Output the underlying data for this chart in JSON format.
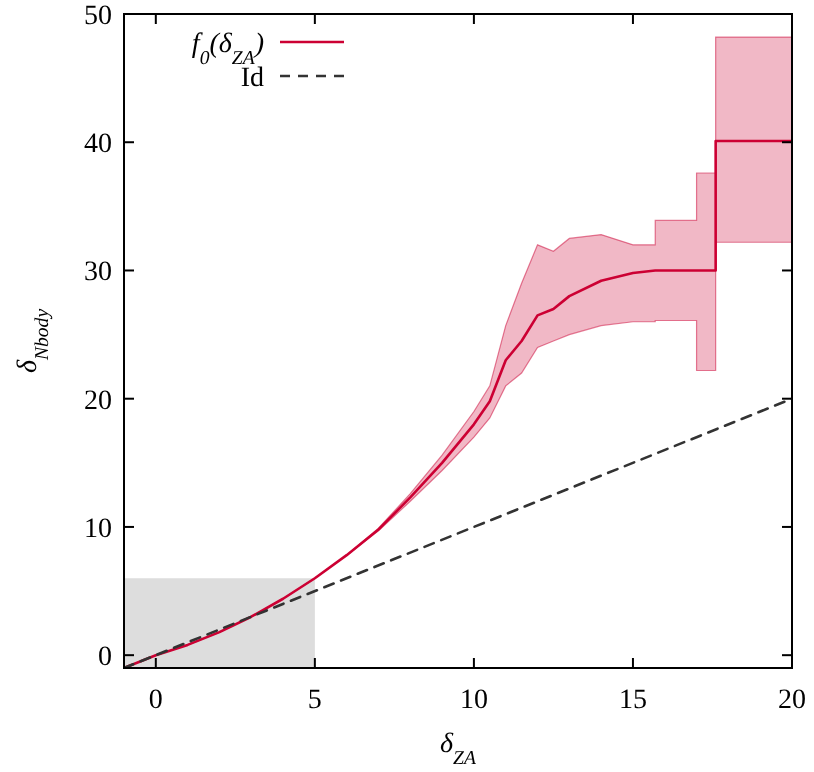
{
  "chart_data": {
    "type": "line",
    "xlabel": "δ$_{ZA}$",
    "ylabel": "δ$_{Nbody}$",
    "xlim": [
      -1,
      20
    ],
    "ylim": [
      -1,
      50
    ],
    "xticks": [
      0,
      5,
      10,
      15,
      20
    ],
    "yticks": [
      0,
      10,
      20,
      30,
      40,
      50
    ],
    "grid": false,
    "legend": "top left",
    "series": [
      {
        "type": "histogram",
        "color": "#dddddd",
        "bins": [
          -1,
          5
        ],
        "base": [
          -1
        ],
        "values": [
          7
        ]
      },
      {
        "name": "f$_{0}$(δ$_{ZA}$)",
        "color": "#cc0033",
        "line_style": "solid",
        "x": [
          -1,
          0,
          1,
          2,
          3,
          4,
          5,
          6,
          7,
          8,
          9,
          10,
          10.5,
          11,
          11.5,
          12,
          12.5,
          13,
          14,
          15,
          15.7,
          15.7,
          17,
          17,
          17.6,
          17.6,
          20
        ],
        "values": [
          -1,
          0,
          0.8,
          1.8,
          3,
          4.4,
          6,
          7.8,
          9.8,
          12.3,
          15,
          18,
          19.8,
          23,
          24.5,
          26.5,
          27,
          28,
          29.2,
          29.8,
          30,
          30,
          30,
          30,
          30,
          40.1,
          40.1
        ],
        "upper": [
          -1,
          0,
          0.8,
          1.8,
          3,
          4.4,
          6,
          7.8,
          9.9,
          12.6,
          15.6,
          19,
          21,
          25.7,
          29,
          32,
          31.5,
          32.5,
          32.8,
          32,
          32,
          33.9,
          33.9,
          37.6,
          37.6,
          48.2,
          48.2
        ],
        "lower": [
          -1,
          0,
          0.8,
          1.8,
          3,
          4.4,
          6,
          7.8,
          9.7,
          12,
          14.4,
          17,
          18.5,
          21,
          22,
          24,
          24.5,
          25,
          25.7,
          26,
          26,
          26.1,
          26.1,
          22.2,
          22.2,
          32.2,
          32.2
        ]
      },
      {
        "name": "Id",
        "color": "#333333",
        "line_style": "dashed",
        "x": [
          -1,
          20
        ],
        "values": [
          -1,
          20
        ]
      }
    ]
  }
}
